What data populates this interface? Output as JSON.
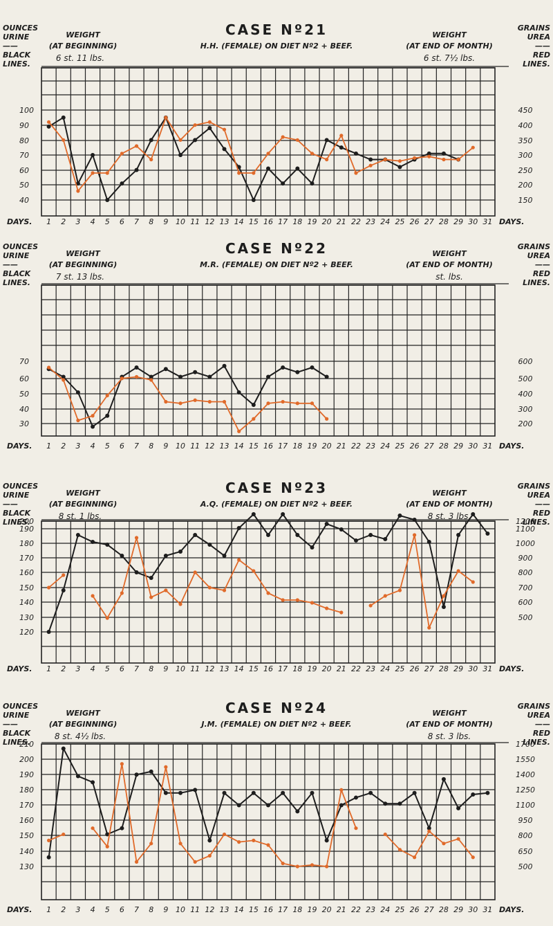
{
  "colors": {
    "paper": "#f1eee6",
    "ink": "#1d1d1d",
    "red": "#e06a2a"
  },
  "legend": {
    "left_lines": [
      "OUNCES",
      "URINE",
      "——",
      "BLACK",
      "LINES."
    ],
    "right_lines": [
      "GRAINS",
      "UREA",
      "——",
      "RED",
      "LINES."
    ],
    "weight_label": "WEIGHT",
    "at_beginning": "(AT BEGINNING)",
    "at_end": "(AT END OF MONTH)",
    "days_label": "DAYS."
  },
  "chart_data": [
    {
      "type": "line",
      "title": "CASE Nº21",
      "subtitle": "H.H. (FEMALE) ON DIET Nº2 + BEEF.",
      "weight_begin": "6 st. 11 lbs.",
      "weight_end": "6 st. 7½ lbs.",
      "x": [
        1,
        2,
        3,
        4,
        5,
        6,
        7,
        8,
        9,
        10,
        11,
        12,
        13,
        14,
        15,
        16,
        17,
        18,
        19,
        20,
        21,
        22,
        23,
        24,
        25,
        26,
        27,
        28,
        29,
        30,
        31
      ],
      "left_axis": {
        "name": "Ounces urine",
        "min": 30,
        "max": 110,
        "ticks": [
          100,
          90,
          80,
          70,
          60,
          50,
          40
        ]
      },
      "right_axis": {
        "name": "Grains urea",
        "ticks": [
          450,
          400,
          350,
          300,
          250,
          200,
          150
        ]
      },
      "series": [
        {
          "name": "Ounces urine (black lines)",
          "color": "#1d1d1d",
          "points": [
            [
              1,
              89
            ],
            [
              2,
              95
            ],
            [
              3,
              51
            ],
            [
              4,
              70
            ],
            [
              5,
              40
            ],
            [
              6,
              51
            ],
            [
              7,
              60
            ],
            [
              8,
              80
            ],
            [
              9,
              95
            ],
            [
              10,
              70
            ],
            [
              11,
              80
            ],
            [
              12,
              88
            ],
            [
              13,
              74
            ],
            [
              14,
              62
            ],
            [
              15,
              40
            ],
            [
              16,
              61
            ],
            [
              17,
              51
            ],
            [
              18,
              61
            ],
            [
              19,
              51
            ],
            [
              20,
              80
            ],
            [
              21,
              75
            ],
            [
              22,
              71
            ],
            [
              23,
              67
            ],
            [
              24,
              67
            ],
            [
              25,
              62
            ],
            [
              26,
              67
            ],
            [
              27,
              71
            ],
            [
              28,
              71
            ],
            [
              29,
              67
            ]
          ]
        },
        {
          "name": "Grains urea (red lines)",
          "color": "#e06a2a",
          "points": [
            [
              1,
              92
            ],
            [
              2,
              80
            ],
            [
              3,
              46
            ],
            [
              4,
              58
            ],
            [
              5,
              58
            ],
            [
              6,
              71
            ],
            [
              7,
              76
            ],
            [
              8,
              67
            ],
            [
              9,
              95
            ],
            [
              10,
              80
            ],
            [
              11,
              90
            ],
            [
              12,
              92
            ],
            [
              13,
              87
            ],
            [
              14,
              58
            ],
            [
              15,
              58
            ],
            [
              16,
              71
            ],
            [
              17,
              82
            ],
            [
              18,
              80
            ],
            [
              19,
              71
            ],
            [
              20,
              67
            ],
            [
              21,
              83
            ],
            [
              22,
              58
            ],
            [
              23,
              63
            ],
            [
              24,
              67
            ],
            [
              25,
              66
            ],
            [
              26,
              68
            ],
            [
              27,
              69
            ],
            [
              28,
              67
            ],
            [
              29,
              67
            ],
            [
              30,
              75
            ]
          ]
        }
      ]
    },
    {
      "type": "line",
      "title": "CASE Nº22",
      "subtitle": "M.R. (FEMALE) ON DIET Nº2 + BEEF.",
      "weight_begin": "7 st. 13 lbs.",
      "weight_end": "st. lbs.",
      "x": [
        1,
        2,
        3,
        4,
        5,
        6,
        7,
        8,
        9,
        10,
        11,
        12,
        13,
        14,
        15,
        16,
        17,
        18,
        19,
        20,
        21,
        22,
        23,
        24,
        25,
        26,
        27,
        28,
        29,
        30,
        31
      ],
      "left_axis": {
        "name": "Ounces urine",
        "min": 20,
        "max": 70,
        "ticks": [
          70,
          60,
          50,
          40,
          30
        ]
      },
      "right_axis": {
        "name": "Grains urea",
        "ticks": [
          600,
          500,
          400,
          300,
          200
        ]
      },
      "series": [
        {
          "name": "Ounces urine (black lines)",
          "color": "#1d1d1d",
          "points": [
            [
              1,
              65
            ],
            [
              2,
              60
            ],
            [
              3,
              50
            ],
            [
              4,
              28
            ],
            [
              5,
              35
            ],
            [
              6,
              60
            ],
            [
              7,
              66
            ],
            [
              8,
              60
            ],
            [
              9,
              65
            ],
            [
              10,
              60
            ],
            [
              11,
              63
            ],
            [
              12,
              60
            ],
            [
              13,
              67
            ],
            [
              14,
              50
            ],
            [
              15,
              42
            ],
            [
              16,
              60
            ],
            [
              17,
              66
            ],
            [
              18,
              63
            ],
            [
              19,
              66
            ],
            [
              20,
              60
            ]
          ]
        },
        {
          "name": "Grains urea (red lines)",
          "color": "#e06a2a",
          "points": [
            [
              1,
              66
            ],
            [
              2,
              58
            ],
            [
              3,
              32
            ],
            [
              4,
              35
            ],
            [
              5,
              48
            ],
            [
              6,
              59
            ],
            [
              7,
              60
            ],
            [
              8,
              58
            ],
            [
              9,
              44
            ],
            [
              10,
              43
            ],
            [
              11,
              45
            ],
            [
              12,
              44
            ],
            [
              13,
              44
            ],
            [
              14,
              25
            ],
            [
              15,
              33
            ],
            [
              16,
              43
            ],
            [
              17,
              44
            ],
            [
              18,
              43
            ],
            [
              19,
              43
            ],
            [
              20,
              33
            ]
          ]
        }
      ]
    },
    {
      "type": "line",
      "title": "CASE Nº23",
      "subtitle": "A.Q. (FEMALE) ON DIET Nº2 + BEEF.",
      "weight_begin": "8 st. 1 lbs.",
      "weight_end": "8 st. 3 lbs.",
      "x": [
        1,
        2,
        3,
        4,
        5,
        6,
        7,
        8,
        9,
        10,
        11,
        12,
        13,
        14,
        15,
        16,
        17,
        18,
        19,
        20,
        21,
        22,
        23,
        24,
        25,
        26,
        27,
        28,
        29,
        30,
        31
      ],
      "left_axis": {
        "name": "Ounces urine",
        "min": 110,
        "max": 210,
        "ticks": [
          200,
          190,
          180,
          170,
          160,
          150,
          140,
          130,
          120
        ]
      },
      "right_axis": {
        "name": "Grains urea",
        "ticks": [
          1200,
          1100,
          1000,
          900,
          800,
          700,
          600,
          500
        ]
      },
      "series": [
        {
          "name": "Ounces urine (black lines)",
          "color": "#1d1d1d",
          "points": [
            [
              1,
              120
            ],
            [
              2,
              150
            ],
            [
              3,
              190
            ],
            [
              4,
              185
            ],
            [
              5,
              183
            ],
            [
              6,
              175
            ],
            [
              7,
              163
            ],
            [
              8,
              159
            ],
            [
              9,
              175
            ],
            [
              10,
              178
            ],
            [
              11,
              190
            ],
            [
              12,
              183
            ],
            [
              13,
              175
            ],
            [
              14,
              195
            ],
            [
              15,
              205
            ],
            [
              16,
              190
            ],
            [
              17,
              205
            ],
            [
              18,
              190
            ],
            [
              19,
              181
            ],
            [
              20,
              198
            ],
            [
              21,
              194
            ],
            [
              22,
              186
            ],
            [
              23,
              190
            ],
            [
              24,
              187
            ],
            [
              25,
              204
            ],
            [
              26,
              201
            ],
            [
              27,
              185
            ],
            [
              28,
              138
            ],
            [
              29,
              190
            ],
            [
              30,
              205
            ],
            [
              31,
              191
            ]
          ]
        },
        {
          "name": "Grains urea (red lines)",
          "color": "#e06a2a",
          "points": [
            [
              1,
              152
            ],
            [
              2,
              161
            ],
            [
              4,
              146
            ],
            [
              5,
              130
            ],
            [
              6,
              148
            ],
            [
              7,
              188
            ],
            [
              8,
              145
            ],
            [
              9,
              150
            ],
            [
              10,
              140
            ],
            [
              11,
              163
            ],
            [
              12,
              152
            ],
            [
              13,
              150
            ],
            [
              14,
              172
            ],
            [
              15,
              164
            ],
            [
              16,
              148
            ],
            [
              17,
              143
            ],
            [
              18,
              143
            ],
            [
              19,
              141
            ],
            [
              20,
              137
            ],
            [
              21,
              134
            ],
            [
              23,
              139
            ],
            [
              24,
              146
            ],
            [
              25,
              150
            ],
            [
              26,
              190
            ],
            [
              27,
              123
            ],
            [
              28,
              146
            ],
            [
              29,
              164
            ],
            [
              30,
              156
            ]
          ]
        }
      ]
    },
    {
      "type": "line",
      "title": "CASE Nº24",
      "subtitle": "J.M. (FEMALE) ON DIET Nº2 + BEEF.",
      "weight_begin": "8 st. 4½ lbs.",
      "weight_end": "8 st. 3 lbs.",
      "x": [
        1,
        2,
        3,
        4,
        5,
        6,
        7,
        8,
        9,
        10,
        11,
        12,
        13,
        14,
        15,
        16,
        17,
        18,
        19,
        20,
        21,
        22,
        23,
        24,
        25,
        26,
        27,
        28,
        29,
        30,
        31
      ],
      "left_axis": {
        "name": "Ounces urine",
        "min": 120,
        "max": 215,
        "ticks": [
          210,
          200,
          190,
          180,
          170,
          160,
          150,
          140,
          130
        ]
      },
      "right_axis": {
        "name": "Grains urea",
        "ticks": [
          1700,
          1550,
          1400,
          1250,
          1100,
          950,
          800,
          650,
          500
        ]
      },
      "series": [
        {
          "name": "Ounces urine (black lines)",
          "color": "#1d1d1d",
          "points": [
            [
              1,
              136
            ],
            [
              2,
              207
            ],
            [
              3,
              189
            ],
            [
              4,
              185
            ],
            [
              5,
              151
            ],
            [
              6,
              155
            ],
            [
              7,
              190
            ],
            [
              8,
              192
            ],
            [
              9,
              178
            ],
            [
              10,
              178
            ],
            [
              11,
              180
            ],
            [
              12,
              147
            ],
            [
              13,
              178
            ],
            [
              14,
              170
            ],
            [
              15,
              178
            ],
            [
              16,
              170
            ],
            [
              17,
              178
            ],
            [
              18,
              166
            ],
            [
              19,
              178
            ],
            [
              20,
              147
            ],
            [
              21,
              170
            ],
            [
              22,
              175
            ],
            [
              23,
              178
            ],
            [
              24,
              171
            ],
            [
              25,
              171
            ],
            [
              26,
              178
            ],
            [
              27,
              155
            ],
            [
              28,
              187
            ],
            [
              29,
              168
            ],
            [
              30,
              177
            ],
            [
              31,
              178
            ]
          ]
        },
        {
          "name": "Grains urea (red lines)",
          "color": "#e06a2a",
          "points": [
            [
              1,
              147
            ],
            [
              2,
              151
            ],
            [
              4,
              155
            ],
            [
              5,
              143
            ],
            [
              6,
              197
            ],
            [
              7,
              133
            ],
            [
              8,
              145
            ],
            [
              9,
              195
            ],
            [
              10,
              145
            ],
            [
              11,
              133
            ],
            [
              12,
              137
            ],
            [
              13,
              151
            ],
            [
              14,
              146
            ],
            [
              15,
              147
            ],
            [
              16,
              144
            ],
            [
              17,
              132
            ],
            [
              18,
              130
            ],
            [
              19,
              131
            ],
            [
              20,
              130
            ],
            [
              21,
              180
            ],
            [
              22,
              155
            ],
            [
              24,
              151
            ],
            [
              25,
              141
            ],
            [
              26,
              136
            ],
            [
              27,
              153
            ],
            [
              28,
              145
            ],
            [
              29,
              148
            ],
            [
              30,
              136
            ]
          ]
        }
      ]
    }
  ]
}
